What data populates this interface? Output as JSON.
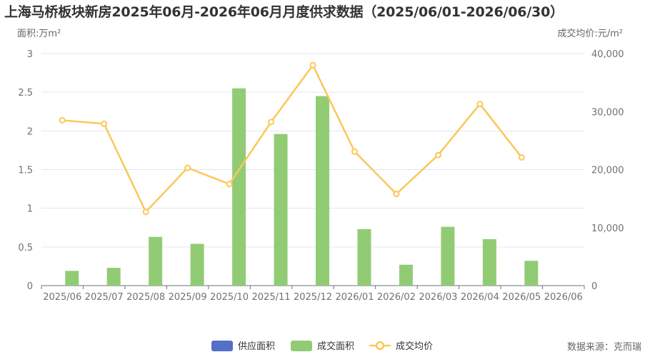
{
  "chart_data": {
    "type": "bar",
    "title": "上海马桥板块新房2025年06月-2026年06月月度供求数据（2025/06/01-2026/06/30）",
    "y_left_label": "面积:万m²",
    "y_right_label": "成交均价:元/m²",
    "categories": [
      "2025/06",
      "2025/07",
      "2025/08",
      "2025/09",
      "2025/10",
      "2025/11",
      "2025/12",
      "2026/01",
      "2026/02",
      "2026/03",
      "2026/04",
      "2026/05",
      "2026/06"
    ],
    "y_left_ticks": [
      "0",
      "0.5",
      "1",
      "1.5",
      "2",
      "2.5",
      "3"
    ],
    "y_right_ticks": [
      "0",
      "10,000",
      "20,000",
      "30,000",
      "40,000"
    ],
    "ylim_left": [
      0,
      3
    ],
    "ylim_right": [
      0,
      40000
    ],
    "grid": true,
    "legend_position": "bottom-center",
    "series": [
      {
        "name": "供应面积",
        "type": "bar",
        "axis": "left",
        "color": "#5470c6",
        "values": [
          0,
          0,
          0,
          0,
          0,
          0,
          0,
          0,
          0,
          0,
          0,
          0,
          0
        ]
      },
      {
        "name": "成交面积",
        "type": "bar",
        "axis": "left",
        "color": "#91cc75",
        "values": [
          0.19,
          0.23,
          0.63,
          0.54,
          2.55,
          1.96,
          2.45,
          0.73,
          0.27,
          0.76,
          0.6,
          0.32,
          0
        ]
      },
      {
        "name": "成交均价",
        "type": "line",
        "axis": "right",
        "color": "#fac858",
        "values": [
          28500,
          27900,
          12700,
          20300,
          17500,
          28200,
          38000,
          23100,
          15800,
          22500,
          31300,
          22100,
          null
        ]
      }
    ]
  },
  "source_note": "数据来源：克而瑞"
}
